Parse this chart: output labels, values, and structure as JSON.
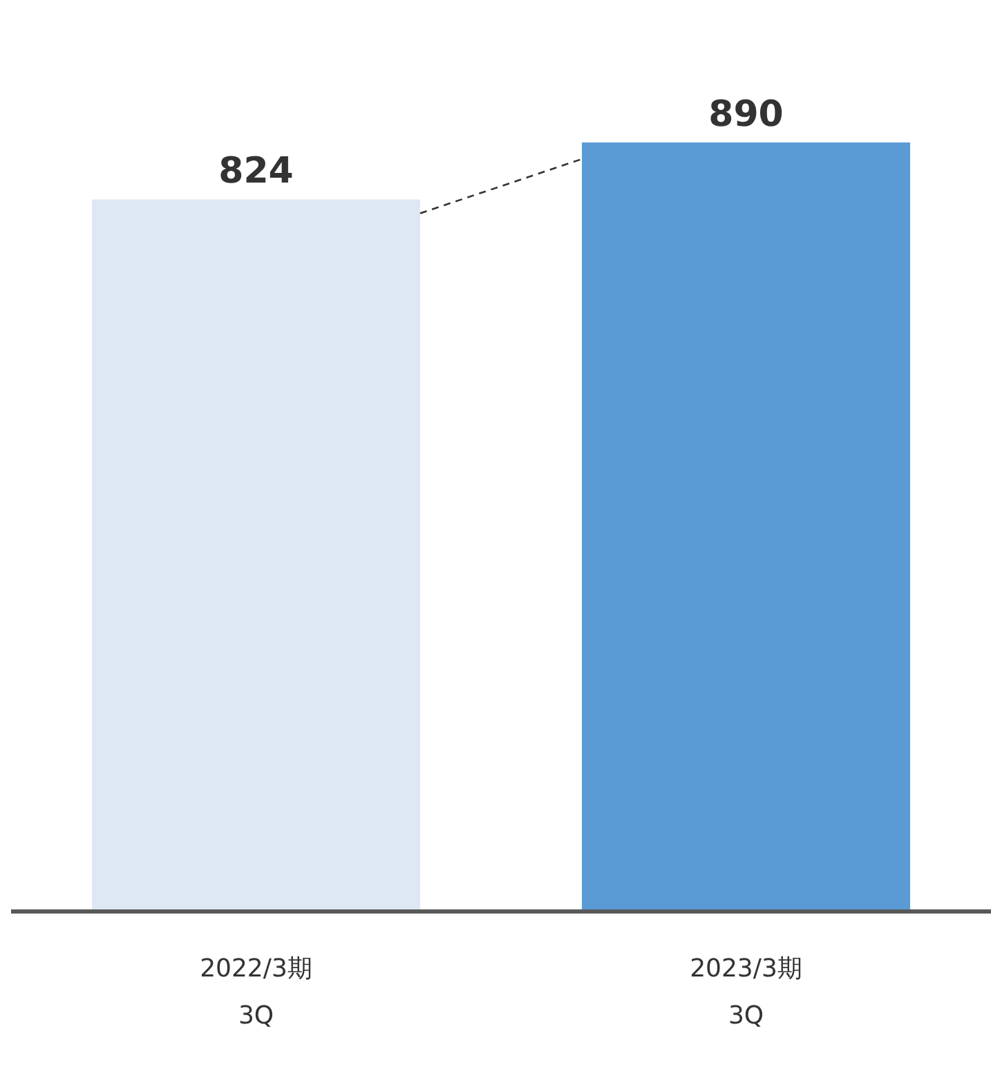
{
  "chart_data": {
    "type": "bar",
    "categories": [
      "2022/3期\n3Q",
      "2023/3期\n3Q"
    ],
    "values": [
      824,
      890
    ],
    "colors": [
      "#dde8f3",
      "#5b9bd5"
    ],
    "data_labels": true
  }
}
